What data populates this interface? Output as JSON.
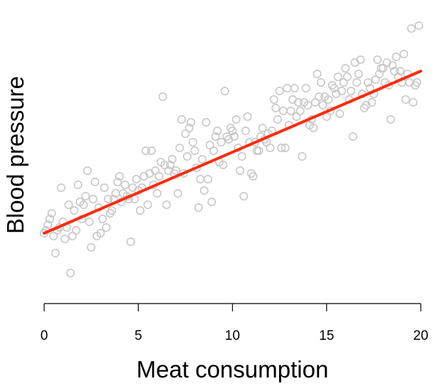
{
  "chart_data": {
    "type": "scatter",
    "title": "",
    "xlabel": "Meat consumption",
    "ylabel": "Blood pressure",
    "xlim": [
      0,
      20
    ],
    "ylim": [
      0,
      1
    ],
    "x_ticks": [
      0,
      5,
      10,
      15,
      20
    ],
    "y_ticks_shown": false,
    "grid": false,
    "point_color": "#c8c8c8",
    "line_color": "#ff2a0e",
    "fit_line": {
      "x": [
        0,
        20
      ],
      "y": [
        0.23,
        0.8
      ]
    },
    "points": [
      [
        0.0,
        0.23
      ],
      [
        0.1,
        0.24
      ],
      [
        0.2,
        0.26
      ],
      [
        0.3,
        0.28
      ],
      [
        0.4,
        0.3
      ],
      [
        0.5,
        0.22
      ],
      [
        0.6,
        0.16
      ],
      [
        0.7,
        0.24
      ],
      [
        0.8,
        0.25
      ],
      [
        0.9,
        0.39
      ],
      [
        1.0,
        0.27
      ],
      [
        1.1,
        0.21
      ],
      [
        1.2,
        0.25
      ],
      [
        1.3,
        0.33
      ],
      [
        1.4,
        0.09
      ],
      [
        1.5,
        0.22
      ],
      [
        1.6,
        0.31
      ],
      [
        1.7,
        0.24
      ],
      [
        1.8,
        0.4
      ],
      [
        1.9,
        0.34
      ],
      [
        2.0,
        0.28
      ],
      [
        2.1,
        0.33
      ],
      [
        2.2,
        0.36
      ],
      [
        2.3,
        0.45
      ],
      [
        2.4,
        0.27
      ],
      [
        2.5,
        0.18
      ],
      [
        2.6,
        0.35
      ],
      [
        2.7,
        0.41
      ],
      [
        2.8,
        0.22
      ],
      [
        2.9,
        0.32
      ],
      [
        3.0,
        0.23
      ],
      [
        3.1,
        0.28
      ],
      [
        3.2,
        0.39
      ],
      [
        3.3,
        0.25
      ],
      [
        3.4,
        0.35
      ],
      [
        3.5,
        0.3
      ],
      [
        3.6,
        0.31
      ],
      [
        3.7,
        0.35
      ],
      [
        3.8,
        0.37
      ],
      [
        3.9,
        0.41
      ],
      [
        4.0,
        0.43
      ],
      [
        4.1,
        0.34
      ],
      [
        4.2,
        0.37
      ],
      [
        4.3,
        0.4
      ],
      [
        4.4,
        0.36
      ],
      [
        4.5,
        0.35
      ],
      [
        4.6,
        0.2
      ],
      [
        4.7,
        0.39
      ],
      [
        4.8,
        0.35
      ],
      [
        4.9,
        0.42
      ],
      [
        5.0,
        0.38
      ],
      [
        5.1,
        0.31
      ],
      [
        5.2,
        0.39
      ],
      [
        5.3,
        0.43
      ],
      [
        5.4,
        0.52
      ],
      [
        5.5,
        0.33
      ],
      [
        5.6,
        0.44
      ],
      [
        5.7,
        0.52
      ],
      [
        5.8,
        0.4
      ],
      [
        5.9,
        0.45
      ],
      [
        6.0,
        0.37
      ],
      [
        6.1,
        0.43
      ],
      [
        6.2,
        0.48
      ],
      [
        6.3,
        0.71
      ],
      [
        6.4,
        0.47
      ],
      [
        6.5,
        0.33
      ],
      [
        6.6,
        0.45
      ],
      [
        6.7,
        0.47
      ],
      [
        6.8,
        0.49
      ],
      [
        6.9,
        0.44
      ],
      [
        7.0,
        0.45
      ],
      [
        7.1,
        0.37
      ],
      [
        7.2,
        0.53
      ],
      [
        7.3,
        0.63
      ],
      [
        7.4,
        0.44
      ],
      [
        7.5,
        0.58
      ],
      [
        7.6,
        0.5
      ],
      [
        7.7,
        0.6
      ],
      [
        7.8,
        0.62
      ],
      [
        7.9,
        0.55
      ],
      [
        8.0,
        0.52
      ],
      [
        8.1,
        0.46
      ],
      [
        8.2,
        0.32
      ],
      [
        8.3,
        0.42
      ],
      [
        8.4,
        0.49
      ],
      [
        8.5,
        0.38
      ],
      [
        8.6,
        0.62
      ],
      [
        8.7,
        0.42
      ],
      [
        8.8,
        0.54
      ],
      [
        8.9,
        0.34
      ],
      [
        9.0,
        0.52
      ],
      [
        9.1,
        0.57
      ],
      [
        9.2,
        0.59
      ],
      [
        9.3,
        0.48
      ],
      [
        9.4,
        0.55
      ],
      [
        9.5,
        0.47
      ],
      [
        9.6,
        0.73
      ],
      [
        9.7,
        0.57
      ],
      [
        9.8,
        0.56
      ],
      [
        9.9,
        0.6
      ],
      [
        10.0,
        0.59
      ],
      [
        10.1,
        0.57
      ],
      [
        10.2,
        0.63
      ],
      [
        10.3,
        0.53
      ],
      [
        10.4,
        0.45
      ],
      [
        10.5,
        0.5
      ],
      [
        10.6,
        0.36
      ],
      [
        10.7,
        0.59
      ],
      [
        10.8,
        0.64
      ],
      [
        10.9,
        0.55
      ],
      [
        11.0,
        0.44
      ],
      [
        11.1,
        0.43
      ],
      [
        11.2,
        0.55
      ],
      [
        11.3,
        0.52
      ],
      [
        11.4,
        0.52
      ],
      [
        11.5,
        0.57
      ],
      [
        11.6,
        0.6
      ],
      [
        11.7,
        0.56
      ],
      [
        11.8,
        0.55
      ],
      [
        11.9,
        0.58
      ],
      [
        12.0,
        0.53
      ],
      [
        12.1,
        0.59
      ],
      [
        12.2,
        0.7
      ],
      [
        12.3,
        0.67
      ],
      [
        12.4,
        0.63
      ],
      [
        12.5,
        0.73
      ],
      [
        12.6,
        0.53
      ],
      [
        12.7,
        0.66
      ],
      [
        12.8,
        0.53
      ],
      [
        12.9,
        0.74
      ],
      [
        13.0,
        0.61
      ],
      [
        13.1,
        0.66
      ],
      [
        13.2,
        0.7
      ],
      [
        13.3,
        0.74
      ],
      [
        13.4,
        0.64
      ],
      [
        13.5,
        0.69
      ],
      [
        13.6,
        0.66
      ],
      [
        13.7,
        0.5
      ],
      [
        13.8,
        0.69
      ],
      [
        13.9,
        0.74
      ],
      [
        14.0,
        0.68
      ],
      [
        14.1,
        0.61
      ],
      [
        14.2,
        0.63
      ],
      [
        14.3,
        0.6
      ],
      [
        14.4,
        0.69
      ],
      [
        14.5,
        0.79
      ],
      [
        14.6,
        0.71
      ],
      [
        14.7,
        0.76
      ],
      [
        14.8,
        0.68
      ],
      [
        14.9,
        0.71
      ],
      [
        15.0,
        0.64
      ],
      [
        15.1,
        0.7
      ],
      [
        15.2,
        0.66
      ],
      [
        15.3,
        0.75
      ],
      [
        15.4,
        0.74
      ],
      [
        15.5,
        0.72
      ],
      [
        15.6,
        0.78
      ],
      [
        15.7,
        0.65
      ],
      [
        15.8,
        0.73
      ],
      [
        15.9,
        0.76
      ],
      [
        16.0,
        0.81
      ],
      [
        16.1,
        0.78
      ],
      [
        16.2,
        0.7
      ],
      [
        16.3,
        0.73
      ],
      [
        16.4,
        0.57
      ],
      [
        16.5,
        0.83
      ],
      [
        16.6,
        0.76
      ],
      [
        16.7,
        0.79
      ],
      [
        16.8,
        0.84
      ],
      [
        16.9,
        0.72
      ],
      [
        17.0,
        0.67
      ],
      [
        17.1,
        0.68
      ],
      [
        17.2,
        0.76
      ],
      [
        17.3,
        0.74
      ],
      [
        17.4,
        0.69
      ],
      [
        17.5,
        0.72
      ],
      [
        17.6,
        0.77
      ],
      [
        17.7,
        0.84
      ],
      [
        17.8,
        0.79
      ],
      [
        17.9,
        0.81
      ],
      [
        18.0,
        0.81
      ],
      [
        18.1,
        0.76
      ],
      [
        18.2,
        0.83
      ],
      [
        18.3,
        0.75
      ],
      [
        18.4,
        0.63
      ],
      [
        18.5,
        0.82
      ],
      [
        18.6,
        0.8
      ],
      [
        18.7,
        0.85
      ],
      [
        18.8,
        0.78
      ],
      [
        18.9,
        0.8
      ],
      [
        19.0,
        0.76
      ],
      [
        19.1,
        0.86
      ],
      [
        19.2,
        0.7
      ],
      [
        19.3,
        0.79
      ],
      [
        19.4,
        0.76
      ],
      [
        19.5,
        0.95
      ],
      [
        19.6,
        0.69
      ],
      [
        19.7,
        0.75
      ],
      [
        19.8,
        0.76
      ],
      [
        19.9,
        0.96
      ]
    ]
  }
}
